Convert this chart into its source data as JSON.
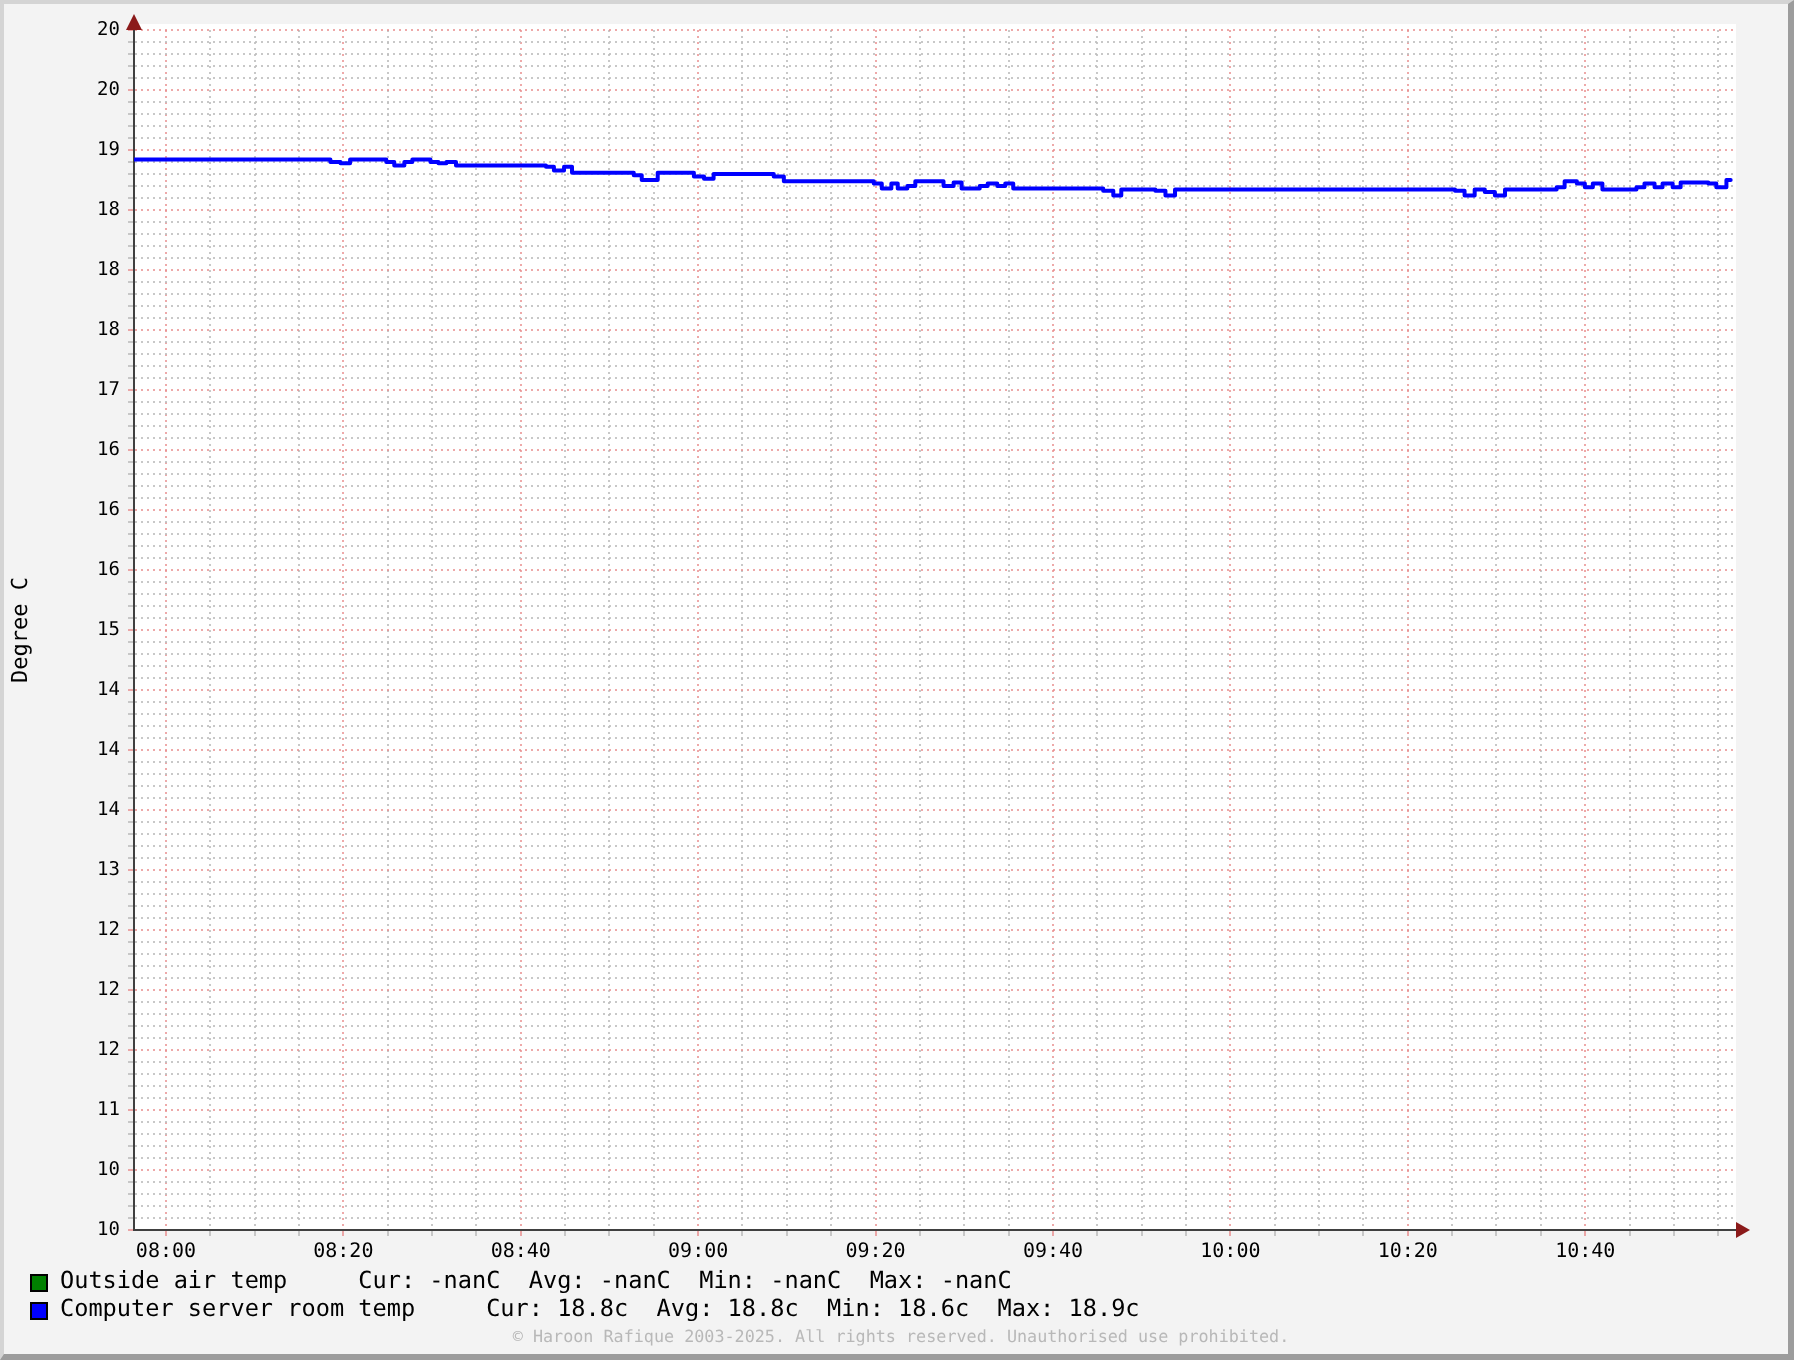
{
  "chart_data": {
    "type": "step",
    "ylabel": "Degree C",
    "xlim": [
      7.94,
      10.95
    ],
    "xticks": [
      {
        "value": 8,
        "label": "08:00"
      },
      {
        "value": 8.0833,
        "label": null
      },
      {
        "value": 8.1667,
        "label": null
      },
      {
        "value": 8.25,
        "label": null
      },
      {
        "value": 8.3333,
        "label": "08:20"
      },
      {
        "value": 8.4167,
        "label": null
      },
      {
        "value": 8.5,
        "label": null
      },
      {
        "value": 8.5833,
        "label": null
      },
      {
        "value": 8.6667,
        "label": "08:40"
      },
      {
        "value": 8.75,
        "label": null
      },
      {
        "value": 8.8333,
        "label": null
      },
      {
        "value": 8.9167,
        "label": null
      },
      {
        "value": 9,
        "label": "09:00"
      },
      {
        "value": 9.0833,
        "label": null
      },
      {
        "value": 9.1667,
        "label": null
      },
      {
        "value": 9.25,
        "label": null
      },
      {
        "value": 9.3333,
        "label": "09:20"
      },
      {
        "value": 9.4167,
        "label": null
      },
      {
        "value": 9.5,
        "label": null
      },
      {
        "value": 9.5833,
        "label": null
      },
      {
        "value": 9.6667,
        "label": "09:40"
      },
      {
        "value": 9.75,
        "label": null
      },
      {
        "value": 9.8333,
        "label": null
      },
      {
        "value": 9.9167,
        "label": null
      },
      {
        "value": 10,
        "label": "10:00"
      },
      {
        "value": 10.0833,
        "label": null
      },
      {
        "value": 10.1667,
        "label": null
      },
      {
        "value": 10.25,
        "label": null
      },
      {
        "value": 10.3333,
        "label": "10:20"
      },
      {
        "value": 10.4167,
        "label": null
      },
      {
        "value": 10.5,
        "label": null
      },
      {
        "value": 10.5833,
        "label": null
      },
      {
        "value": 10.6667,
        "label": "10:40"
      },
      {
        "value": 10.75,
        "label": null
      },
      {
        "value": 10.8333,
        "label": null
      },
      {
        "value": 10.9167,
        "label": null
      }
    ],
    "ylim": [
      10,
      20
    ],
    "yticks": [
      10,
      {
        "value": 10.1,
        "label": null
      },
      {
        "value": 10.2,
        "label": null
      },
      {
        "value": 10.3,
        "label": null
      },
      {
        "value": 10.4,
        "label": null
      },
      {
        "value": 10.5,
        "label": "10"
      },
      {
        "value": 10.6,
        "label": null
      },
      {
        "value": 10.7,
        "label": null
      },
      {
        "value": 10.8,
        "label": null
      },
      {
        "value": 10.9,
        "label": null
      },
      11,
      {
        "value": 11.1,
        "label": null
      },
      {
        "value": 11.2,
        "label": null
      },
      {
        "value": 11.3,
        "label": null
      },
      {
        "value": 11.4,
        "label": null
      },
      {
        "value": 11.5,
        "label": "12"
      },
      {
        "value": 11.6,
        "label": null
      },
      {
        "value": 11.7,
        "label": null
      },
      {
        "value": 11.8,
        "label": null
      },
      {
        "value": 11.9,
        "label": null
      },
      12,
      {
        "value": 12.1,
        "label": null
      },
      {
        "value": 12.2,
        "label": null
      },
      {
        "value": 12.3,
        "label": null
      },
      {
        "value": 12.4,
        "label": null
      },
      {
        "value": 12.5,
        "label": "12"
      },
      {
        "value": 12.6,
        "label": null
      },
      {
        "value": 12.7,
        "label": null
      },
      {
        "value": 12.8,
        "label": null
      },
      {
        "value": 12.9,
        "label": null
      },
      13,
      {
        "value": 13.1,
        "label": null
      },
      {
        "value": 13.2,
        "label": null
      },
      {
        "value": 13.3,
        "label": null
      },
      {
        "value": 13.4,
        "label": null
      },
      {
        "value": 13.5,
        "label": "14"
      },
      {
        "value": 13.6,
        "label": null
      },
      {
        "value": 13.7,
        "label": null
      },
      {
        "value": 13.8,
        "label": null
      },
      {
        "value": 13.9,
        "label": null
      },
      14,
      {
        "value": 14.1,
        "label": null
      },
      {
        "value": 14.2,
        "label": null
      },
      {
        "value": 14.3,
        "label": null
      },
      {
        "value": 14.4,
        "label": null
      },
      {
        "value": 14.5,
        "label": "14"
      },
      {
        "value": 14.6,
        "label": null
      },
      {
        "value": 14.7,
        "label": null
      },
      {
        "value": 14.8,
        "label": null
      },
      {
        "value": 14.9,
        "label": null
      },
      15,
      {
        "value": 15.1,
        "label": null
      },
      {
        "value": 15.2,
        "label": null
      },
      {
        "value": 15.3,
        "label": null
      },
      {
        "value": 15.4,
        "label": null
      },
      {
        "value": 15.5,
        "label": "16"
      },
      {
        "value": 15.6,
        "label": null
      },
      {
        "value": 15.7,
        "label": null
      },
      {
        "value": 15.8,
        "label": null
      },
      {
        "value": 15.9,
        "label": null
      },
      16,
      {
        "value": 16.1,
        "label": null
      },
      {
        "value": 16.2,
        "label": null
      },
      {
        "value": 16.3,
        "label": null
      },
      {
        "value": 16.4,
        "label": null
      },
      {
        "value": 16.5,
        "label": "16"
      },
      {
        "value": 16.6,
        "label": null
      },
      {
        "value": 16.7,
        "label": null
      },
      {
        "value": 16.8,
        "label": null
      },
      {
        "value": 16.9,
        "label": null
      },
      17,
      {
        "value": 17.1,
        "label": null
      },
      {
        "value": 17.2,
        "label": null
      },
      {
        "value": 17.3,
        "label": null
      },
      {
        "value": 17.4,
        "label": null
      },
      {
        "value": 17.5,
        "label": "18"
      },
      {
        "value": 17.6,
        "label": null
      },
      {
        "value": 17.7,
        "label": null
      },
      {
        "value": 17.8,
        "label": null
      },
      {
        "value": 17.9,
        "label": null
      },
      18,
      {
        "value": 18.1,
        "label": null
      },
      {
        "value": 18.2,
        "label": null
      },
      {
        "value": 18.3,
        "label": null
      },
      {
        "value": 18.4,
        "label": null
      },
      {
        "value": 18.5,
        "label": "18"
      },
      {
        "value": 18.6,
        "label": null
      },
      {
        "value": 18.7,
        "label": null
      },
      {
        "value": 18.8,
        "label": null
      },
      {
        "value": 18.9,
        "label": null
      },
      19,
      {
        "value": 19.1,
        "label": null
      },
      {
        "value": 19.2,
        "label": null
      },
      {
        "value": 19.3,
        "label": null
      },
      {
        "value": 19.4,
        "label": null
      },
      {
        "value": 19.5,
        "label": "20"
      },
      {
        "value": 19.6,
        "label": null
      },
      {
        "value": 19.7,
        "label": null
      },
      {
        "value": 19.8,
        "label": null
      },
      {
        "value": 19.9,
        "label": null
      },
      20
    ],
    "grid": true,
    "legend": "bottom",
    "marker": "none",
    "series": [
      {
        "name": "Outside air temp",
        "color": "#008000"
      },
      {
        "name": "Computer server room temp",
        "color": "#0000ff",
        "x": [
          7.94,
          8.309,
          8.328,
          8.346,
          8.414,
          8.429,
          8.448,
          8.463,
          8.497,
          8.512,
          8.527,
          8.545,
          8.714,
          8.729,
          8.748,
          8.763,
          8.879,
          8.894,
          8.924,
          8.992,
          9.011,
          9.029,
          9.142,
          9.161,
          9.33,
          9.345,
          9.363,
          9.375,
          9.393,
          9.408,
          9.461,
          9.48,
          9.495,
          9.529,
          9.544,
          9.562,
          9.577,
          9.592,
          9.761,
          9.78,
          9.795,
          9.859,
          9.878,
          9.896,
          10.422,
          10.44,
          10.459,
          10.478,
          10.497,
          10.516,
          10.613,
          10.628,
          10.651,
          10.666,
          10.681,
          10.699,
          10.763,
          10.778,
          10.797,
          10.812,
          10.831,
          10.846,
          10.898,
          10.913,
          10.932,
          10.94
        ],
        "values": [
          18.92,
          18.9,
          18.89,
          18.92,
          18.9,
          18.87,
          18.9,
          18.92,
          18.9,
          18.89,
          18.9,
          18.87,
          18.86,
          18.83,
          18.86,
          18.81,
          18.79,
          18.75,
          18.81,
          18.78,
          18.76,
          18.8,
          18.78,
          18.74,
          18.72,
          18.68,
          18.72,
          18.68,
          18.7,
          18.74,
          18.7,
          18.73,
          18.68,
          18.7,
          18.72,
          18.7,
          18.72,
          18.68,
          18.66,
          18.62,
          18.67,
          18.66,
          18.62,
          18.67,
          18.66,
          18.62,
          18.67,
          18.65,
          18.62,
          18.67,
          18.69,
          18.74,
          18.72,
          18.69,
          18.72,
          18.67,
          18.69,
          18.72,
          18.69,
          18.72,
          18.69,
          18.73,
          18.72,
          18.69,
          18.75,
          18.75
        ]
      }
    ],
    "annotations": [
      "Cur: -nanC  Avg: -nanC  Min: -nanC  Max: -nanC",
      "Cur: 18.8c  Avg: 18.8c  Min: 18.6c  Max: 18.9c",
      "© Haroon Rafique 2003-2025. All rights reserved. Unauthorised use prohibited."
    ]
  }
}
